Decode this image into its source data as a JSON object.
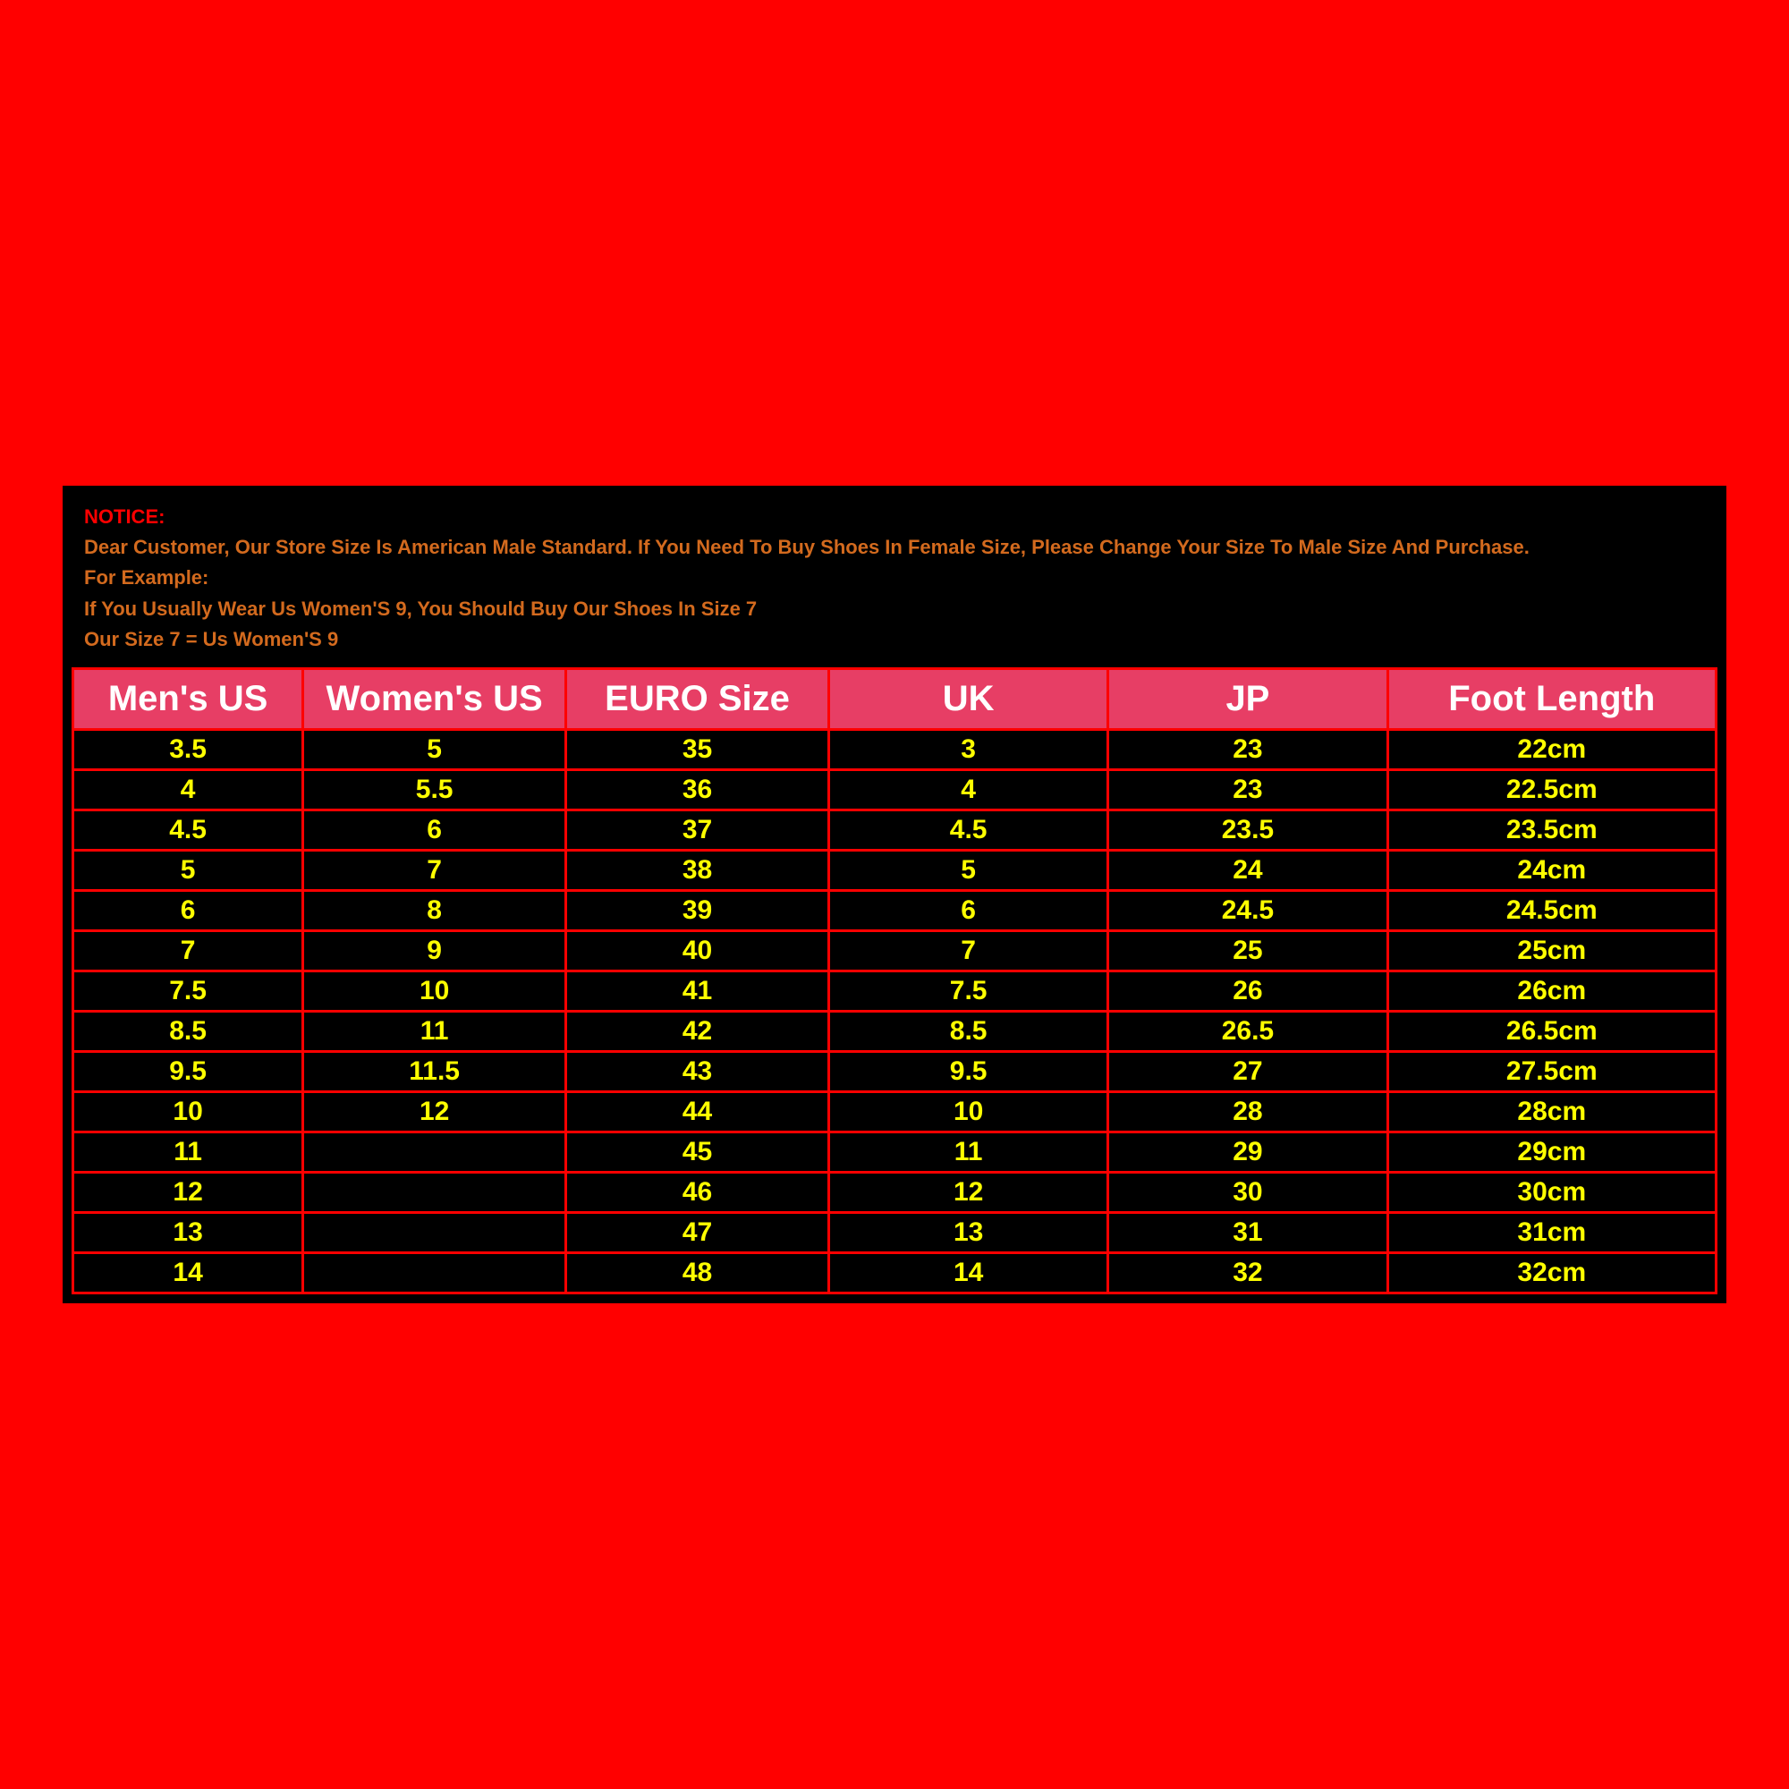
{
  "notice": {
    "line1": "NOTICE:",
    "line2": "Dear Customer, Our Store Size Is American Male Standard. If You Need To Buy Shoes In Female Size, Please Change Your Size To Male Size And Purchase.",
    "line3": "For Example:",
    "line4": "If You Usually Wear Us Women'S 9, You Should Buy Our Shoes In Size 7",
    "line5": "Our Size 7 = Us Women'S 9",
    "color_line1": "#ff0000",
    "color_rest": "#d36a1e",
    "fontsize": 22
  },
  "table": {
    "type": "table",
    "header_bg": "#e73e65",
    "header_color": "#ffffff",
    "header_fontsize": 40,
    "cell_bg": "#000000",
    "cell_color": "#ffff00",
    "cell_fontsize": 30,
    "border_color": "#ff0000",
    "border_width": 3,
    "columns": [
      "Men's US",
      "Women's US",
      "EURO Size",
      "UK",
      "JP",
      "Foot Length"
    ],
    "col_widths_pct": [
      14,
      16,
      16,
      17,
      17,
      20
    ],
    "rows": [
      [
        "3.5",
        "5",
        "35",
        "3",
        "23",
        "22cm"
      ],
      [
        "4",
        "5.5",
        "36",
        "4",
        "23",
        "22.5cm"
      ],
      [
        "4.5",
        "6",
        "37",
        "4.5",
        "23.5",
        "23.5cm"
      ],
      [
        "5",
        "7",
        "38",
        "5",
        "24",
        "24cm"
      ],
      [
        "6",
        "8",
        "39",
        "6",
        "24.5",
        "24.5cm"
      ],
      [
        "7",
        "9",
        "40",
        "7",
        "25",
        "25cm"
      ],
      [
        "7.5",
        "10",
        "41",
        "7.5",
        "26",
        "26cm"
      ],
      [
        "8.5",
        "11",
        "42",
        "8.5",
        "26.5",
        "26.5cm"
      ],
      [
        "9.5",
        "11.5",
        "43",
        "9.5",
        "27",
        "27.5cm"
      ],
      [
        "10",
        "12",
        "44",
        "10",
        "28",
        "28cm"
      ],
      [
        "11",
        "",
        "45",
        "11",
        "29",
        "29cm"
      ],
      [
        "12",
        "",
        "46",
        "12",
        "30",
        "30cm"
      ],
      [
        "13",
        "",
        "47",
        "13",
        "31",
        "31cm"
      ],
      [
        "14",
        "",
        "48",
        "14",
        "32",
        "32cm"
      ]
    ]
  },
  "page_bg": "#ff0000",
  "panel_bg": "#000000"
}
